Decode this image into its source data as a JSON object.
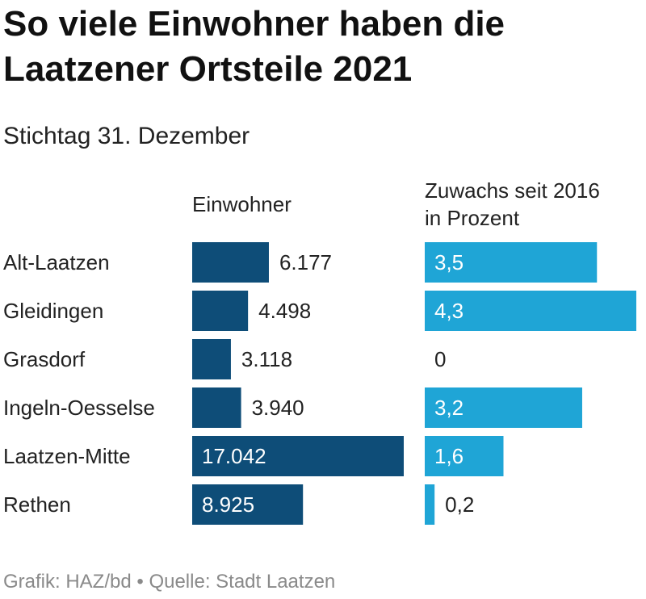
{
  "title": "So viele Einwohner haben die Laatzener Ortsteile 2021",
  "subtitle": "Stichtag 31. Dezember",
  "colors": {
    "population_bar": "#0e4d78",
    "growth_bar": "#1fa5d6"
  },
  "chart_data": [
    {
      "type": "bar",
      "orientation": "horizontal",
      "header": "Einwohner",
      "categories": [
        "Alt-Laatzen",
        "Gleidingen",
        "Grasdorf",
        "Ingeln-Oesselse",
        "Laatzen-Mitte",
        "Rethen"
      ],
      "values": [
        6177,
        4498,
        3118,
        3940,
        17042,
        8925
      ],
      "value_labels": [
        "6.177",
        "4.498",
        "3.118",
        "3.940",
        "17.042",
        "8.925"
      ],
      "xlim": [
        0,
        17042
      ],
      "grid": false
    },
    {
      "type": "bar",
      "orientation": "horizontal",
      "header_lines": [
        "Zuwachs seit 2016",
        "in Prozent"
      ],
      "categories": [
        "Alt-Laatzen",
        "Gleidingen",
        "Grasdorf",
        "Ingeln-Oesselse",
        "Laatzen-Mitte",
        "Rethen"
      ],
      "values": [
        3.5,
        4.3,
        0,
        3.2,
        1.6,
        0.2
      ],
      "value_labels": [
        "3,5",
        "4,3",
        "0",
        "3,2",
        "1,6",
        "0,2"
      ],
      "xlim": [
        0,
        4.3
      ],
      "grid": false
    }
  ],
  "footer": "Grafik: HAZ/bd • Quelle: Stadt Laatzen"
}
